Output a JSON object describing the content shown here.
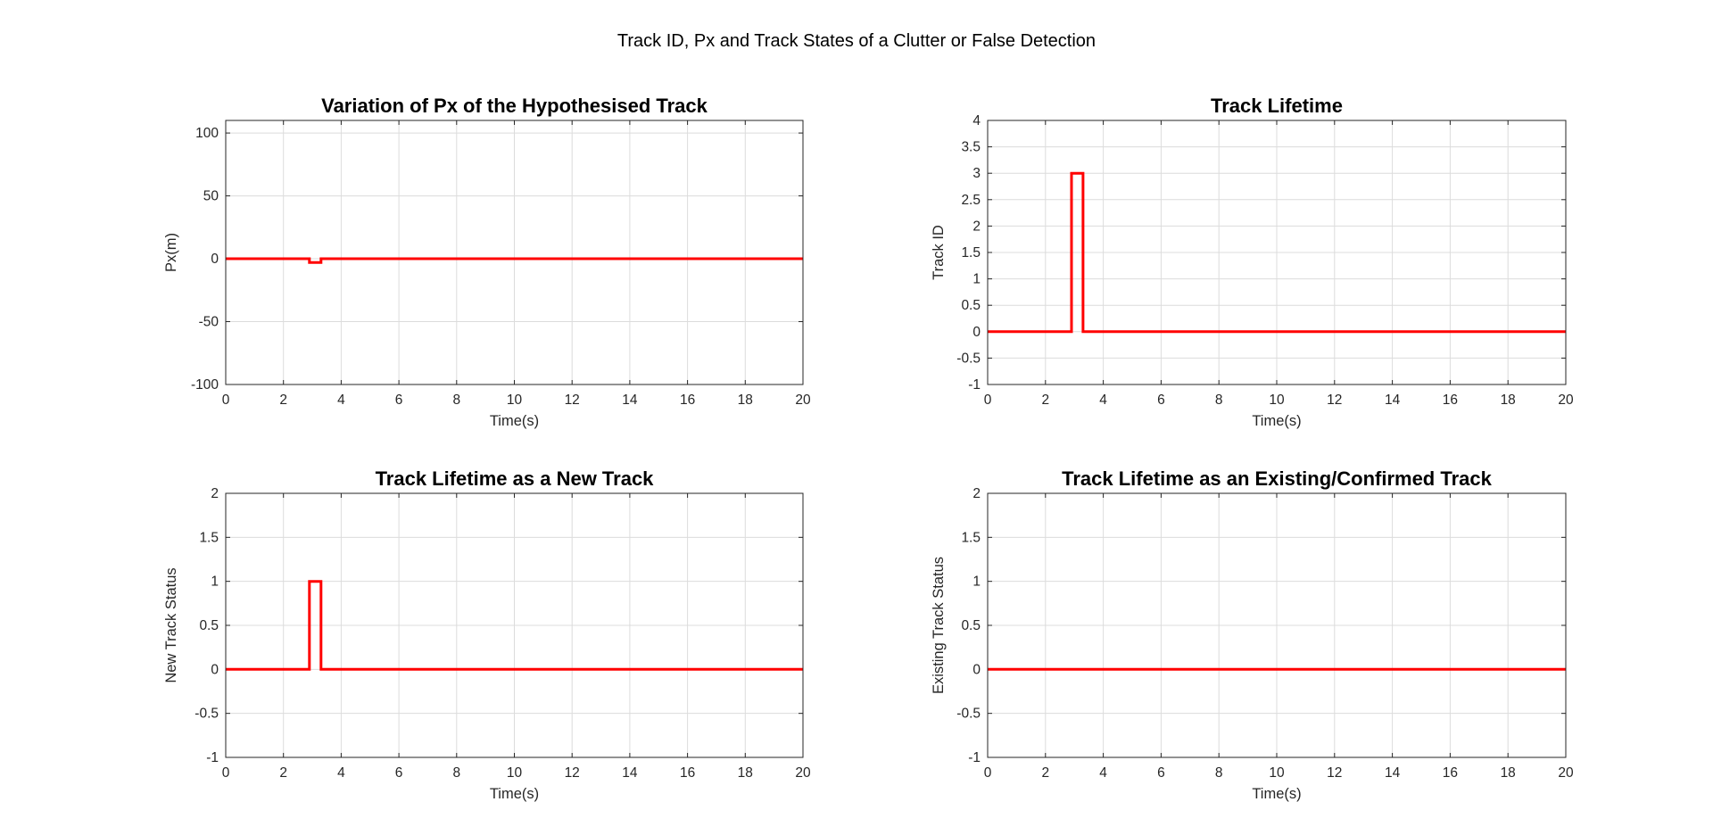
{
  "figure": {
    "suptitle": "Track ID, Px and Track States of a Clutter or False Detection"
  },
  "colors": {
    "line": "#ff0000",
    "grid": "#dcdcdc",
    "axis": "#262626"
  },
  "chart_data": [
    {
      "type": "line",
      "title": "Variation of Px of the Hypothesised Track",
      "xlabel": "Time(s)",
      "ylabel": "Px(m)",
      "xlim": [
        0,
        20
      ],
      "ylim": [
        -100,
        110
      ],
      "xticks": [
        "0",
        "2",
        "4",
        "6",
        "8",
        "10",
        "12",
        "14",
        "16",
        "18",
        "20"
      ],
      "yticks": [
        "-100",
        "-50",
        "0",
        "50",
        "100"
      ],
      "grid": true,
      "series": [
        {
          "x": [
            0,
            2.9,
            2.9,
            3.3,
            3.3,
            20
          ],
          "y": [
            0,
            0,
            -3,
            -3,
            0,
            0
          ]
        }
      ]
    },
    {
      "type": "line",
      "title": "Track Lifetime",
      "xlabel": "Time(s)",
      "ylabel": "Track ID",
      "xlim": [
        0,
        20
      ],
      "ylim": [
        -1,
        4
      ],
      "xticks": [
        "0",
        "2",
        "4",
        "6",
        "8",
        "10",
        "12",
        "14",
        "16",
        "18",
        "20"
      ],
      "yticks": [
        "-1",
        "-0.5",
        "0",
        "0.5",
        "1",
        "1.5",
        "2",
        "2.5",
        "3",
        "3.5",
        "4"
      ],
      "grid": true,
      "series": [
        {
          "x": [
            0,
            2.9,
            2.9,
            3.3,
            3.3,
            20
          ],
          "y": [
            0,
            0,
            3,
            3,
            0,
            0
          ]
        }
      ]
    },
    {
      "type": "line",
      "title": "Track Lifetime as a New Track",
      "xlabel": "Time(s)",
      "ylabel": "New Track Status",
      "xlim": [
        0,
        20
      ],
      "ylim": [
        -1,
        2
      ],
      "xticks": [
        "0",
        "2",
        "4",
        "6",
        "8",
        "10",
        "12",
        "14",
        "16",
        "18",
        "20"
      ],
      "yticks": [
        "-1",
        "-0.5",
        "0",
        "0.5",
        "1",
        "1.5",
        "2"
      ],
      "grid": true,
      "series": [
        {
          "x": [
            0,
            2.9,
            2.9,
            3.3,
            3.3,
            20
          ],
          "y": [
            0,
            0,
            1,
            1,
            0,
            0
          ]
        }
      ]
    },
    {
      "type": "line",
      "title": "Track Lifetime as an Existing/Confirmed Track",
      "xlabel": "Time(s)",
      "ylabel": "Existing Track Status",
      "xlim": [
        0,
        20
      ],
      "ylim": [
        -1,
        2
      ],
      "xticks": [
        "0",
        "2",
        "4",
        "6",
        "8",
        "10",
        "12",
        "14",
        "16",
        "18",
        "20"
      ],
      "yticks": [
        "-1",
        "-0.5",
        "0",
        "0.5",
        "1",
        "1.5",
        "2"
      ],
      "grid": true,
      "series": [
        {
          "x": [
            0,
            20
          ],
          "y": [
            0,
            0
          ]
        }
      ]
    }
  ]
}
